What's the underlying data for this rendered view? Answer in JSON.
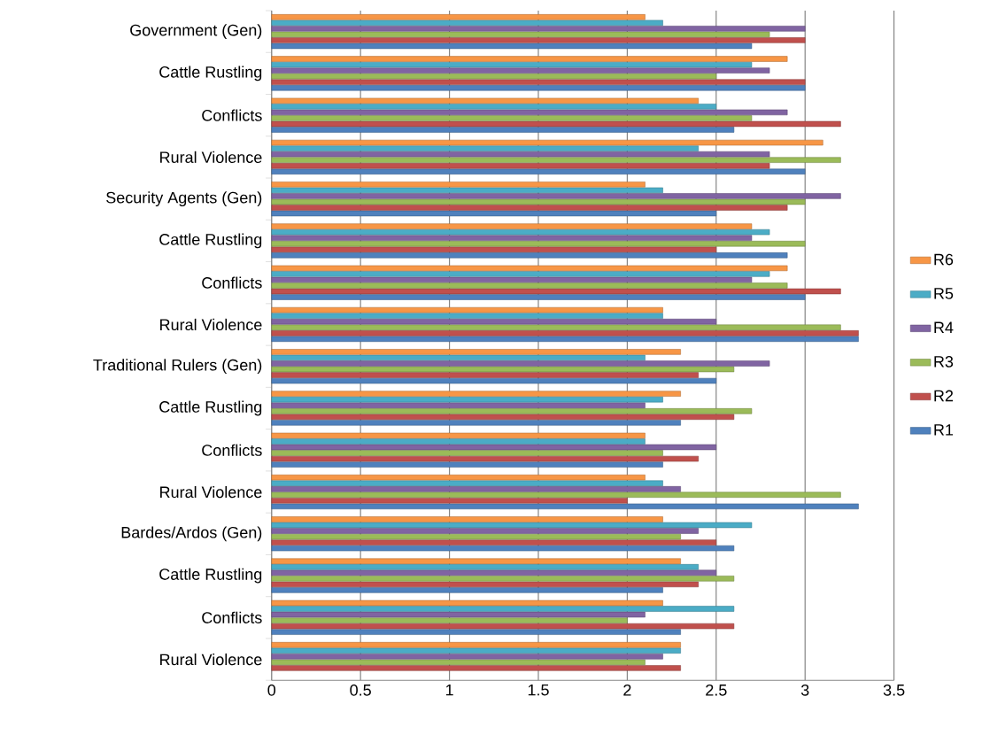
{
  "chart_data": {
    "type": "bar",
    "orientation": "horizontal",
    "categories": [
      "Government (Gen)",
      "Cattle Rustling",
      "Conflicts",
      "Rural Violence",
      "Security Agents (Gen)",
      "Cattle Rustling",
      "Conflicts",
      "Rural Violence",
      "Traditional Rulers (Gen)",
      "Cattle Rustling",
      "Conflicts",
      "Rural Violence",
      "Bardes/Ardos (Gen)",
      "Cattle Rustling",
      "Conflicts",
      "Rural Violence"
    ],
    "series": [
      {
        "name": "R1",
        "color": "#4f81bd",
        "values": [
          2.7,
          3.0,
          2.6,
          3.0,
          2.5,
          2.9,
          3.0,
          3.3,
          2.5,
          2.3,
          2.2,
          3.3,
          2.6,
          2.2,
          2.3,
          null
        ]
      },
      {
        "name": "R2",
        "color": "#c0504d",
        "values": [
          3.0,
          3.0,
          3.2,
          2.8,
          2.9,
          2.5,
          3.2,
          3.3,
          2.4,
          2.6,
          2.4,
          2.0,
          2.5,
          2.4,
          2.6,
          2.3
        ]
      },
      {
        "name": "R3",
        "color": "#9bbb59",
        "values": [
          2.8,
          2.5,
          2.7,
          3.2,
          3.0,
          3.0,
          2.9,
          3.2,
          2.6,
          2.7,
          2.2,
          3.2,
          2.3,
          2.6,
          2.0,
          2.1
        ]
      },
      {
        "name": "R4",
        "color": "#8064a2",
        "values": [
          3.0,
          2.8,
          2.9,
          2.8,
          3.2,
          2.7,
          2.7,
          2.5,
          2.8,
          2.1,
          2.5,
          2.3,
          2.4,
          2.5,
          2.1,
          2.2
        ]
      },
      {
        "name": "R5",
        "color": "#4bacc6",
        "values": [
          2.2,
          2.7,
          2.5,
          2.4,
          2.2,
          2.8,
          2.8,
          2.2,
          2.1,
          2.2,
          2.1,
          2.2,
          2.7,
          2.4,
          2.6,
          2.3
        ]
      },
      {
        "name": "R6",
        "color": "#f79646",
        "values": [
          2.1,
          2.9,
          2.4,
          3.1,
          2.1,
          2.7,
          2.9,
          2.2,
          2.3,
          2.3,
          2.1,
          2.1,
          2.2,
          2.3,
          2.2,
          2.3
        ]
      }
    ],
    "xlim": [
      0,
      3.5
    ],
    "xticks": [
      0,
      0.5,
      1,
      1.5,
      2,
      2.5,
      3,
      3.5
    ],
    "grid": "x",
    "legend": "right"
  }
}
